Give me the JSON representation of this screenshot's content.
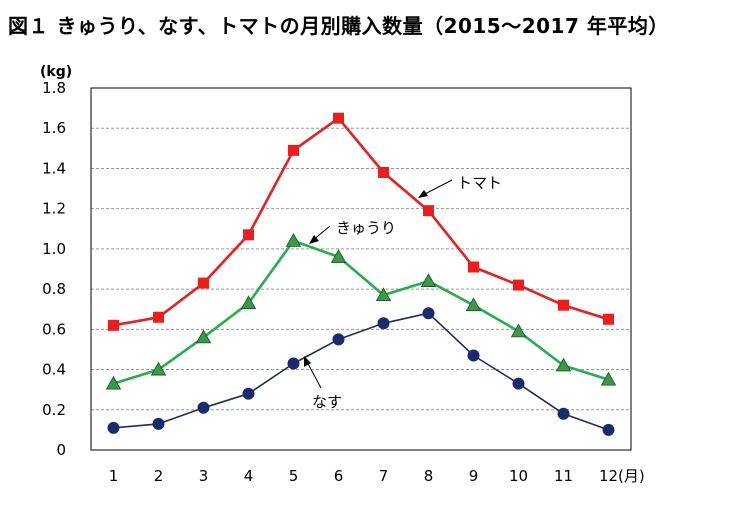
{
  "chart_data": {
    "type": "line",
    "title": "図１ きゅうり、なす、トマトの月別購入数量（2015～2017 年平均）",
    "y_unit": "(kg)",
    "x_unit": "(月)",
    "categories": [
      "1",
      "2",
      "3",
      "4",
      "5",
      "6",
      "7",
      "8",
      "9",
      "10",
      "11",
      "12"
    ],
    "ylim": [
      0,
      1.8
    ],
    "yticks": [
      0,
      0.2,
      0.4,
      0.6,
      0.8,
      1.0,
      1.2,
      1.4,
      1.6,
      1.8
    ],
    "ytick_labels": [
      "0",
      "0.2",
      "0.4",
      "0.6",
      "0.8",
      "1.0",
      "1.2",
      "1.4",
      "1.6",
      "1.8"
    ],
    "grid": "horizontal-dashed",
    "series": [
      {
        "name": "トマト",
        "marker": "square",
        "color": "#ee1c1c",
        "marker_color": "#ee1c1c",
        "values": [
          0.62,
          0.66,
          0.83,
          1.07,
          1.49,
          1.65,
          1.38,
          1.19,
          0.91,
          0.82,
          0.72,
          0.65
        ]
      },
      {
        "name": "きゅうり",
        "marker": "triangle",
        "color": "#22b04a",
        "marker_color": "#3a9a4a",
        "values": [
          0.33,
          0.4,
          0.56,
          0.73,
          1.04,
          0.96,
          0.77,
          0.84,
          0.72,
          0.59,
          0.42,
          0.35
        ]
      },
      {
        "name": "なす",
        "marker": "circle",
        "color": "#1c2e5e",
        "marker_color": "#1a2a6c",
        "values": [
          0.11,
          0.13,
          0.21,
          0.28,
          0.43,
          0.55,
          0.63,
          0.68,
          0.47,
          0.33,
          0.18,
          0.1
        ]
      }
    ]
  }
}
